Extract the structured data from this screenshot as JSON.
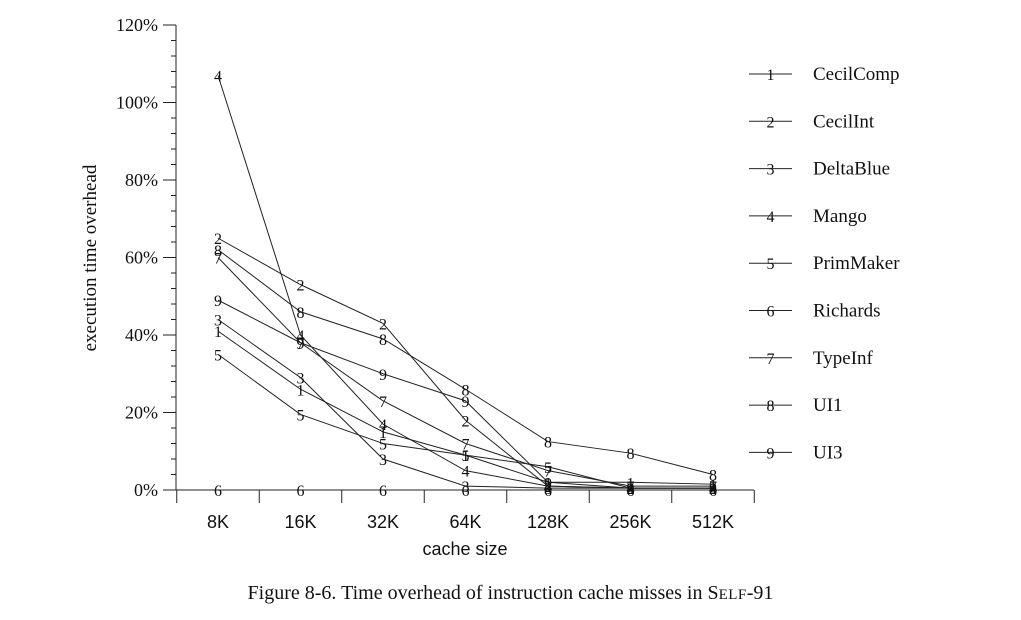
{
  "chart_data": {
    "type": "line",
    "xlabel": "cache size",
    "ylabel": "execution time overhead",
    "categories": [
      "8K",
      "16K",
      "32K",
      "64K",
      "128K",
      "256K",
      "512K"
    ],
    "yticks": [
      "0%",
      "20%",
      "40%",
      "60%",
      "80%",
      "100%",
      "120%"
    ],
    "ylim": [
      0,
      120
    ],
    "grid": false,
    "legend_position": "right",
    "series": [
      {
        "name": "CecilComp",
        "marker": "1",
        "values": [
          41,
          26,
          15,
          9,
          2,
          2,
          1.5
        ]
      },
      {
        "name": "CecilInt",
        "marker": "2",
        "values": [
          65,
          53,
          43,
          18,
          1,
          0.5,
          0.5
        ]
      },
      {
        "name": "DeltaBlue",
        "marker": "3",
        "values": [
          44,
          29,
          8,
          1,
          0.5,
          0.5,
          0.5
        ]
      },
      {
        "name": "Mango",
        "marker": "4",
        "values": [
          107,
          40,
          17,
          5,
          1,
          0.5,
          0.5
        ]
      },
      {
        "name": "PrimMaker",
        "marker": "5",
        "values": [
          35,
          19.5,
          12,
          9,
          6,
          0.5,
          0.5
        ]
      },
      {
        "name": "Richards",
        "marker": "6",
        "values": [
          0,
          0,
          0,
          0,
          0,
          0,
          0
        ]
      },
      {
        "name": "TypeInf",
        "marker": "7",
        "values": [
          60,
          38,
          23,
          12,
          5,
          1,
          1
        ]
      },
      {
        "name": "UI1",
        "marker": "8",
        "values": [
          62,
          46,
          39,
          26,
          12.5,
          9.5,
          4
        ]
      },
      {
        "name": "UI3",
        "marker": "9",
        "values": [
          49,
          38,
          30,
          23,
          2,
          0.5,
          0.5
        ]
      }
    ]
  },
  "caption": {
    "prefix": "Figure 8-6.  Time overhead of instruction cache misses in S",
    "smallcaps": "ELF",
    "suffix": "-91"
  }
}
